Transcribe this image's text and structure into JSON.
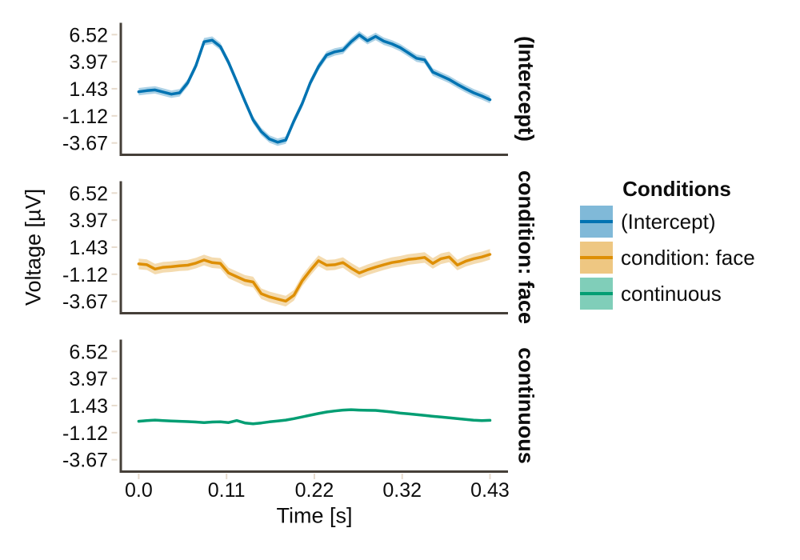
{
  "chart_data": {
    "type": "line",
    "xlabel": "Time [s]",
    "ylabel": "Voltage [µV]",
    "legend_title": "Conditions",
    "legend_position": "right",
    "grid": false,
    "layout": "3 stacked panels, shared x and y scales",
    "xlim": [
      -0.021,
      0.452
    ],
    "ylim": [
      -4.67,
      7.52
    ],
    "x_start": 0.0,
    "x_step": 0.01,
    "xticks": {
      "positions": [
        0.0,
        0.1075,
        0.215,
        0.3225,
        0.43
      ],
      "labels": [
        "0.0",
        "0.11",
        "0.22",
        "0.32",
        "0.43"
      ]
    },
    "yticks": {
      "values": [
        6.52,
        3.97,
        1.43,
        -1.12,
        -3.67
      ],
      "labels": [
        "6.52",
        "3.97",
        "1.43",
        "-1.12",
        "-3.67"
      ]
    },
    "series": [
      {
        "name": "(Intercept)",
        "color": "#0173b2",
        "ribbon_halfwidth": 0.35,
        "values": [
          1.15,
          1.25,
          1.32,
          1.12,
          0.92,
          1.05,
          2.0,
          3.6,
          5.85,
          6.0,
          5.4,
          3.9,
          2.1,
          0.25,
          -1.5,
          -2.6,
          -3.3,
          -3.6,
          -3.4,
          -1.6,
          0.0,
          2.0,
          3.5,
          4.6,
          4.9,
          5.05,
          5.85,
          6.5,
          5.95,
          6.35,
          5.9,
          5.65,
          5.3,
          4.8,
          4.3,
          4.15,
          3.0,
          2.65,
          2.3,
          1.85,
          1.43,
          1.05,
          0.75,
          0.4
        ]
      },
      {
        "name": "condition: face",
        "color": "#de8f05",
        "ribbon_halfwidth": 0.5,
        "values": [
          -0.15,
          -0.22,
          -0.63,
          -0.46,
          -0.41,
          -0.32,
          -0.27,
          -0.07,
          0.22,
          -0.03,
          -0.1,
          -1.0,
          -1.35,
          -1.7,
          -1.85,
          -2.95,
          -3.25,
          -3.45,
          -3.65,
          -3.1,
          -1.75,
          -0.75,
          0.15,
          -0.27,
          -0.22,
          -0.02,
          -0.55,
          -1.0,
          -0.7,
          -0.45,
          -0.22,
          -0.02,
          0.1,
          0.27,
          0.36,
          0.46,
          -0.1,
          0.34,
          0.51,
          -0.25,
          0.1,
          0.34,
          0.51,
          0.75
        ]
      },
      {
        "name": "continuous",
        "color": "#029e73",
        "ribbon_halfwidth": 0.12,
        "values": [
          -0.05,
          0.02,
          0.06,
          0.02,
          -0.02,
          -0.05,
          -0.08,
          -0.12,
          -0.17,
          -0.12,
          -0.1,
          -0.17,
          0.02,
          -0.21,
          -0.28,
          -0.21,
          -0.1,
          -0.03,
          0.06,
          0.2,
          0.36,
          0.52,
          0.68,
          0.82,
          0.92,
          1.0,
          1.04,
          1.0,
          0.98,
          0.97,
          0.9,
          0.82,
          0.72,
          0.66,
          0.58,
          0.5,
          0.42,
          0.35,
          0.28,
          0.2,
          0.12,
          0.05,
          0.02,
          0.04
        ]
      }
    ]
  },
  "style": {
    "spine_color": "#453f38",
    "tick_mark_color": "#e7dbcd",
    "text_color": "#0d0d0d",
    "ribbon_alpha": 0.32,
    "legend_swatch_alpha": 0.5
  }
}
